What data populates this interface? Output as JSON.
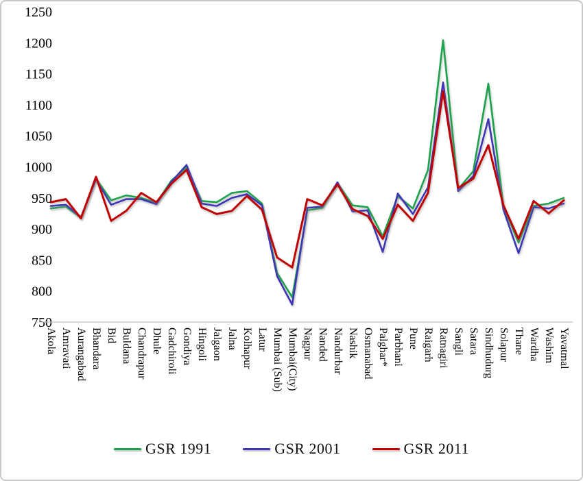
{
  "figure": {
    "background": "#ffffff",
    "border_color": "#c9c9c9",
    "axis_line_color": "#bfbfbf",
    "text_color": "#000000"
  },
  "chart_data": {
    "type": "line",
    "title": "",
    "xlabel": "",
    "ylabel": "",
    "ylim": [
      750,
      1250
    ],
    "ytick_step": 50,
    "grid": false,
    "legend_position": "bottom",
    "categories": [
      "Akola",
      "Amravati",
      "Aurangabad",
      "Bhandara",
      "Bid",
      "Buldana",
      "Chandrapur",
      "Dhule",
      "Gadchiroli",
      "Gondiya",
      "Hingoli",
      "Jalgaon",
      "Jalna",
      "Kolhapur",
      "Latur",
      "Mumbai (Sub)",
      "Mumbai(City)",
      "Nagpur",
      "Nanded",
      "Nandurbar",
      "Nashik",
      "Osmanabad",
      "Palghar*",
      "Parbhani",
      "Pune",
      "Raigarh",
      "Ratnagiri",
      "Sangli",
      "Satara",
      "Sindhudurg",
      "Solapur",
      "Thane",
      "Wardha",
      "Washim",
      "Yavatmal"
    ],
    "series": [
      {
        "name": "GSR 1991",
        "color": "#1CA24E",
        "stroke_width": 2.6,
        "values": [
          933,
          936,
          918,
          981,
          946,
          954,
          950,
          942,
          978,
          999,
          945,
          943,
          958,
          961,
          941,
          829,
          790,
          930,
          934,
          974,
          938,
          935,
          888,
          953,
          933,
          995,
          1204,
          964,
          993,
          1134,
          936,
          878,
          937,
          941,
          950
        ]
      },
      {
        "name": "GSR 2001",
        "color": "#3E36B4",
        "stroke_width": 2.6,
        "values": [
          937,
          939,
          919,
          980,
          939,
          948,
          948,
          940,
          976,
          1003,
          941,
          937,
          950,
          956,
          938,
          824,
          778,
          934,
          936,
          975,
          928,
          930,
          863,
          957,
          924,
          967,
          1136,
          961,
          985,
          1077,
          931,
          861,
          935,
          933,
          941
        ]
      },
      {
        "name": "GSR 2011",
        "color": "#C00000",
        "stroke_width": 3,
        "values": [
          943,
          948,
          917,
          984,
          913,
          929,
          958,
          943,
          973,
          995,
          935,
          924,
          929,
          953,
          931,
          854,
          838,
          948,
          938,
          972,
          932,
          921,
          884,
          939,
          913,
          958,
          1122,
          966,
          981,
          1035,
          938,
          884,
          945,
          925,
          946
        ]
      }
    ]
  }
}
